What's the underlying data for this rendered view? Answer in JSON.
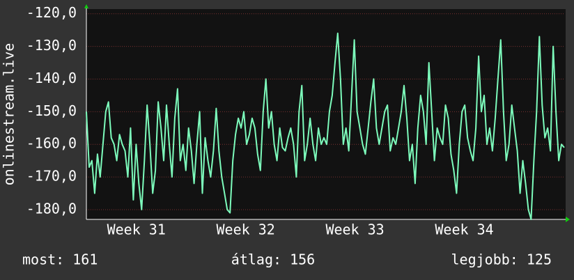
{
  "chart_data": {
    "type": "line",
    "y_label": "onlinestream.live",
    "ylim": [
      -183,
      -119
    ],
    "yticks": [
      {
        "value": -120,
        "label": "-120,0"
      },
      {
        "value": -130,
        "label": "-130,0"
      },
      {
        "value": -140,
        "label": "-140,0"
      },
      {
        "value": -150,
        "label": "-150,0"
      },
      {
        "value": -160,
        "label": "-160,0"
      },
      {
        "value": -170,
        "label": "-170,0"
      },
      {
        "value": -180,
        "label": "-180,0"
      }
    ],
    "xlim": [
      0,
      30.6
    ],
    "xticks": [
      {
        "value": 3.2,
        "label": "Week 31"
      },
      {
        "value": 10.2,
        "label": "Week 32"
      },
      {
        "value": 17.2,
        "label": "Week 33"
      },
      {
        "value": 24.2,
        "label": "Week 34"
      }
    ],
    "grid": true,
    "series": [
      {
        "name": "onlinestream.live",
        "color": "#7dfcbc",
        "values": [
          -150,
          -167,
          -165,
          -175,
          -163,
          -170,
          -160,
          -150,
          -147,
          -158,
          -160,
          -165,
          -157,
          -160,
          -162,
          -170,
          -155,
          -177,
          -160,
          -172,
          -180,
          -165,
          -148,
          -160,
          -175,
          -168,
          -147,
          -155,
          -165,
          -148,
          -160,
          -170,
          -152,
          -143,
          -165,
          -160,
          -168,
          -155,
          -162,
          -172,
          -160,
          -150,
          -175,
          -158,
          -165,
          -170,
          -162,
          -149,
          -162,
          -170,
          -175,
          -180,
          -181,
          -165,
          -157,
          -152,
          -155,
          -150,
          -160,
          -157,
          -152,
          -155,
          -163,
          -168,
          -150,
          -140,
          -155,
          -150,
          -160,
          -165,
          -155,
          -161,
          -162,
          -158,
          -155,
          -160,
          -170,
          -150,
          -142,
          -165,
          -160,
          -152,
          -160,
          -165,
          -155,
          -160,
          -158,
          -160,
          -150,
          -145,
          -135,
          -126,
          -140,
          -160,
          -155,
          -162,
          -145,
          -128,
          -150,
          -155,
          -160,
          -163,
          -155,
          -147,
          -140,
          -155,
          -160,
          -155,
          -150,
          -148,
          -162,
          -158,
          -160,
          -155,
          -150,
          -142,
          -152,
          -165,
          -160,
          -172,
          -155,
          -145,
          -150,
          -160,
          -135,
          -150,
          -165,
          -155,
          -158,
          -160,
          -148,
          -152,
          -163,
          -168,
          -175,
          -160,
          -150,
          -148,
          -158,
          -162,
          -165,
          -155,
          -133,
          -150,
          -145,
          -160,
          -155,
          -162,
          -152,
          -140,
          -128,
          -150,
          -165,
          -160,
          -148,
          -155,
          -162,
          -175,
          -165,
          -172,
          -180,
          -183,
          -165,
          -150,
          -127,
          -148,
          -158,
          -155,
          -162,
          -130,
          -150,
          -165,
          -160,
          -161
        ]
      }
    ],
    "footer": [
      "most: 161",
      "átlag: 156",
      "legjobb: 125"
    ]
  }
}
